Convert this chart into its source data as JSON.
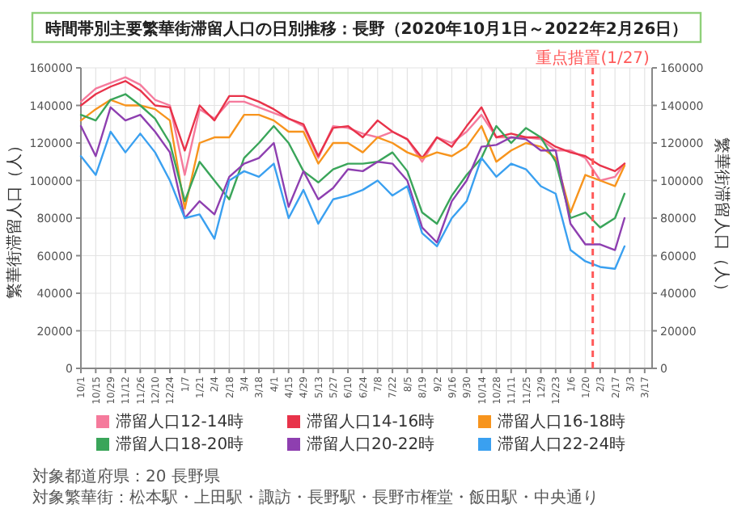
{
  "chart_data": {
    "type": "line",
    "title": "時間帯別主要繁華街滞留人口の日別推移：長野（2020年10月1日～2022年2月26日）",
    "ylabel": "繁華街滞留人口（人）",
    "y2label": "繁華街滞留人口（人）",
    "x": [
      "2020-10-01",
      "2020-10-15",
      "2020-10-29",
      "2020-11-12",
      "2020-11-26",
      "2020-12-10",
      "2020-12-24",
      "2021-01-07",
      "2021-01-21",
      "2021-02-04",
      "2021-02-18",
      "2021-03-04",
      "2021-03-18",
      "2021-04-01",
      "2021-04-15",
      "2021-04-29",
      "2021-05-13",
      "2021-05-27",
      "2021-06-10",
      "2021-06-24",
      "2021-07-08",
      "2021-07-22",
      "2021-08-05",
      "2021-08-19",
      "2021-09-02",
      "2021-09-16",
      "2021-09-30",
      "2021-10-14",
      "2021-10-28",
      "2021-11-11",
      "2021-11-25",
      "2021-12-09",
      "2021-12-23",
      "2022-01-06",
      "2022-01-20",
      "2022-02-03",
      "2022-02-17",
      "2022-02-26"
    ],
    "series": [
      {
        "name": "滞留人口12-14時",
        "color": "#f57a9c",
        "values": [
          142000,
          149000,
          152000,
          155000,
          151000,
          143000,
          140000,
          103000,
          138000,
          133000,
          142000,
          142000,
          139000,
          136000,
          133000,
          129000,
          112000,
          129000,
          128000,
          125000,
          123000,
          126000,
          122000,
          110000,
          123000,
          120000,
          126000,
          135000,
          123000,
          123000,
          123000,
          122000,
          116000,
          116000,
          112000,
          100000,
          102000,
          109000
        ]
      },
      {
        "name": "滞留人口14-16時",
        "color": "#e8334a",
        "values": [
          140000,
          146000,
          150000,
          153000,
          148000,
          140000,
          139000,
          116000,
          140000,
          132000,
          145000,
          145000,
          142000,
          138000,
          133000,
          130000,
          113000,
          128000,
          129000,
          123000,
          132000,
          126000,
          122000,
          112000,
          123000,
          118000,
          129000,
          139000,
          123000,
          125000,
          123000,
          123000,
          118000,
          115000,
          113000,
          108000,
          105000,
          109000
        ]
      },
      {
        "name": "滞留人口16-18時",
        "color": "#f7941d",
        "values": [
          132000,
          138000,
          143000,
          140000,
          140000,
          138000,
          132000,
          85000,
          120000,
          123000,
          123000,
          135000,
          135000,
          132000,
          126000,
          126000,
          109000,
          120000,
          120000,
          115000,
          123000,
          120000,
          115000,
          112000,
          115000,
          113000,
          118000,
          129000,
          110000,
          116000,
          120000,
          118000,
          112000,
          83000,
          103000,
          100000,
          97000,
          108000
        ]
      },
      {
        "name": "滞留人口18-20時",
        "color": "#3aa55a",
        "values": [
          135000,
          132000,
          143000,
          146000,
          140000,
          133000,
          120000,
          89000,
          110000,
          100000,
          90000,
          112000,
          120000,
          129000,
          120000,
          105000,
          99000,
          106000,
          109000,
          109000,
          110000,
          115000,
          105000,
          83000,
          77000,
          92000,
          103000,
          112000,
          129000,
          120000,
          128000,
          123000,
          110000,
          80000,
          83000,
          75000,
          80000,
          93000
        ]
      },
      {
        "name": "滞留人口20-22時",
        "color": "#8e3fb0",
        "values": [
          129000,
          113000,
          139000,
          132000,
          135000,
          126000,
          115000,
          80000,
          89000,
          82000,
          102000,
          109000,
          112000,
          120000,
          86000,
          105000,
          90000,
          96000,
          106000,
          105000,
          110000,
          109000,
          100000,
          75000,
          67000,
          89000,
          100000,
          118000,
          119000,
          123000,
          122000,
          116000,
          116000,
          77000,
          66000,
          66000,
          63000,
          80000
        ]
      },
      {
        "name": "滞留人口22-24時",
        "color": "#3aa0f0",
        "values": [
          113000,
          103000,
          126000,
          115000,
          125000,
          115000,
          100000,
          80000,
          82000,
          69000,
          100000,
          105000,
          102000,
          109000,
          80000,
          95000,
          77000,
          90000,
          92000,
          95000,
          100000,
          92000,
          97000,
          72000,
          65000,
          80000,
          89000,
          112000,
          102000,
          109000,
          106000,
          97000,
          93000,
          63000,
          57000,
          54000,
          53000,
          65000
        ]
      }
    ],
    "xlim": [
      "2020-10-01",
      "2022-03-24"
    ],
    "xticks": [
      {
        "value": "2020-10-01",
        "label": "10/1"
      },
      {
        "value": "2020-10-15",
        "label": "10/15"
      },
      {
        "value": "2020-10-29",
        "label": "10/29"
      },
      {
        "value": "2020-11-12",
        "label": "11/12"
      },
      {
        "value": "2020-11-26",
        "label": "11/26"
      },
      {
        "value": "2020-12-10",
        "label": "12/10"
      },
      {
        "value": "2020-12-24",
        "label": "12/24"
      },
      {
        "value": "2021-01-07",
        "label": "1/7"
      },
      {
        "value": "2021-01-21",
        "label": "1/21"
      },
      {
        "value": "2021-02-04",
        "label": "2/4"
      },
      {
        "value": "2021-02-18",
        "label": "2/18"
      },
      {
        "value": "2021-03-04",
        "label": "3/4"
      },
      {
        "value": "2021-03-18",
        "label": "3/18"
      },
      {
        "value": "2021-04-01",
        "label": "4/1"
      },
      {
        "value": "2021-04-15",
        "label": "4/15"
      },
      {
        "value": "2021-04-29",
        "label": "4/29"
      },
      {
        "value": "2021-05-13",
        "label": "5/13"
      },
      {
        "value": "2021-05-27",
        "label": "5/27"
      },
      {
        "value": "2021-06-10",
        "label": "6/10"
      },
      {
        "value": "2021-06-24",
        "label": "6/24"
      },
      {
        "value": "2021-07-08",
        "label": "7/8"
      },
      {
        "value": "2021-07-22",
        "label": "7/22"
      },
      {
        "value": "2021-08-05",
        "label": "8/5"
      },
      {
        "value": "2021-08-19",
        "label": "8/19"
      },
      {
        "value": "2021-09-02",
        "label": "9/2"
      },
      {
        "value": "2021-09-16",
        "label": "9/16"
      },
      {
        "value": "2021-09-30",
        "label": "9/30"
      },
      {
        "value": "2021-10-14",
        "label": "10/14"
      },
      {
        "value": "2021-10-28",
        "label": "10/28"
      },
      {
        "value": "2021-11-11",
        "label": "11/11"
      },
      {
        "value": "2021-11-25",
        "label": "11/25"
      },
      {
        "value": "2021-12-09",
        "label": "12/9"
      },
      {
        "value": "2021-12-23",
        "label": "12/23"
      },
      {
        "value": "2022-01-06",
        "label": "1/6"
      },
      {
        "value": "2022-01-20",
        "label": "1/20"
      },
      {
        "value": "2022-02-03",
        "label": "2/3"
      },
      {
        "value": "2022-02-17",
        "label": "2/17"
      },
      {
        "value": "2022-03-03",
        "label": "3/3"
      },
      {
        "value": "2022-03-17",
        "label": "3/17"
      }
    ],
    "ylim": [
      0,
      160000
    ],
    "yticks": [
      0,
      20000,
      40000,
      60000,
      80000,
      100000,
      120000,
      140000,
      160000
    ],
    "y2lim": [
      0,
      160000
    ],
    "y2ticks": [
      0,
      20000,
      40000,
      60000,
      80000,
      100000,
      120000,
      140000,
      160000
    ],
    "grid": true,
    "legend": "bottom",
    "ref_lines": [
      {
        "axis": "x",
        "value": "2022-01-27",
        "label": "重点措置(1/27)",
        "color": "#ff5a5a",
        "line_style": "dashed"
      }
    ],
    "annotations": [
      "対象都道府県：20 長野県",
      "対象繁華街：松本駅・上田駅・諏訪・長野駅・長野市権堂・飯田駅・中央通り"
    ]
  }
}
